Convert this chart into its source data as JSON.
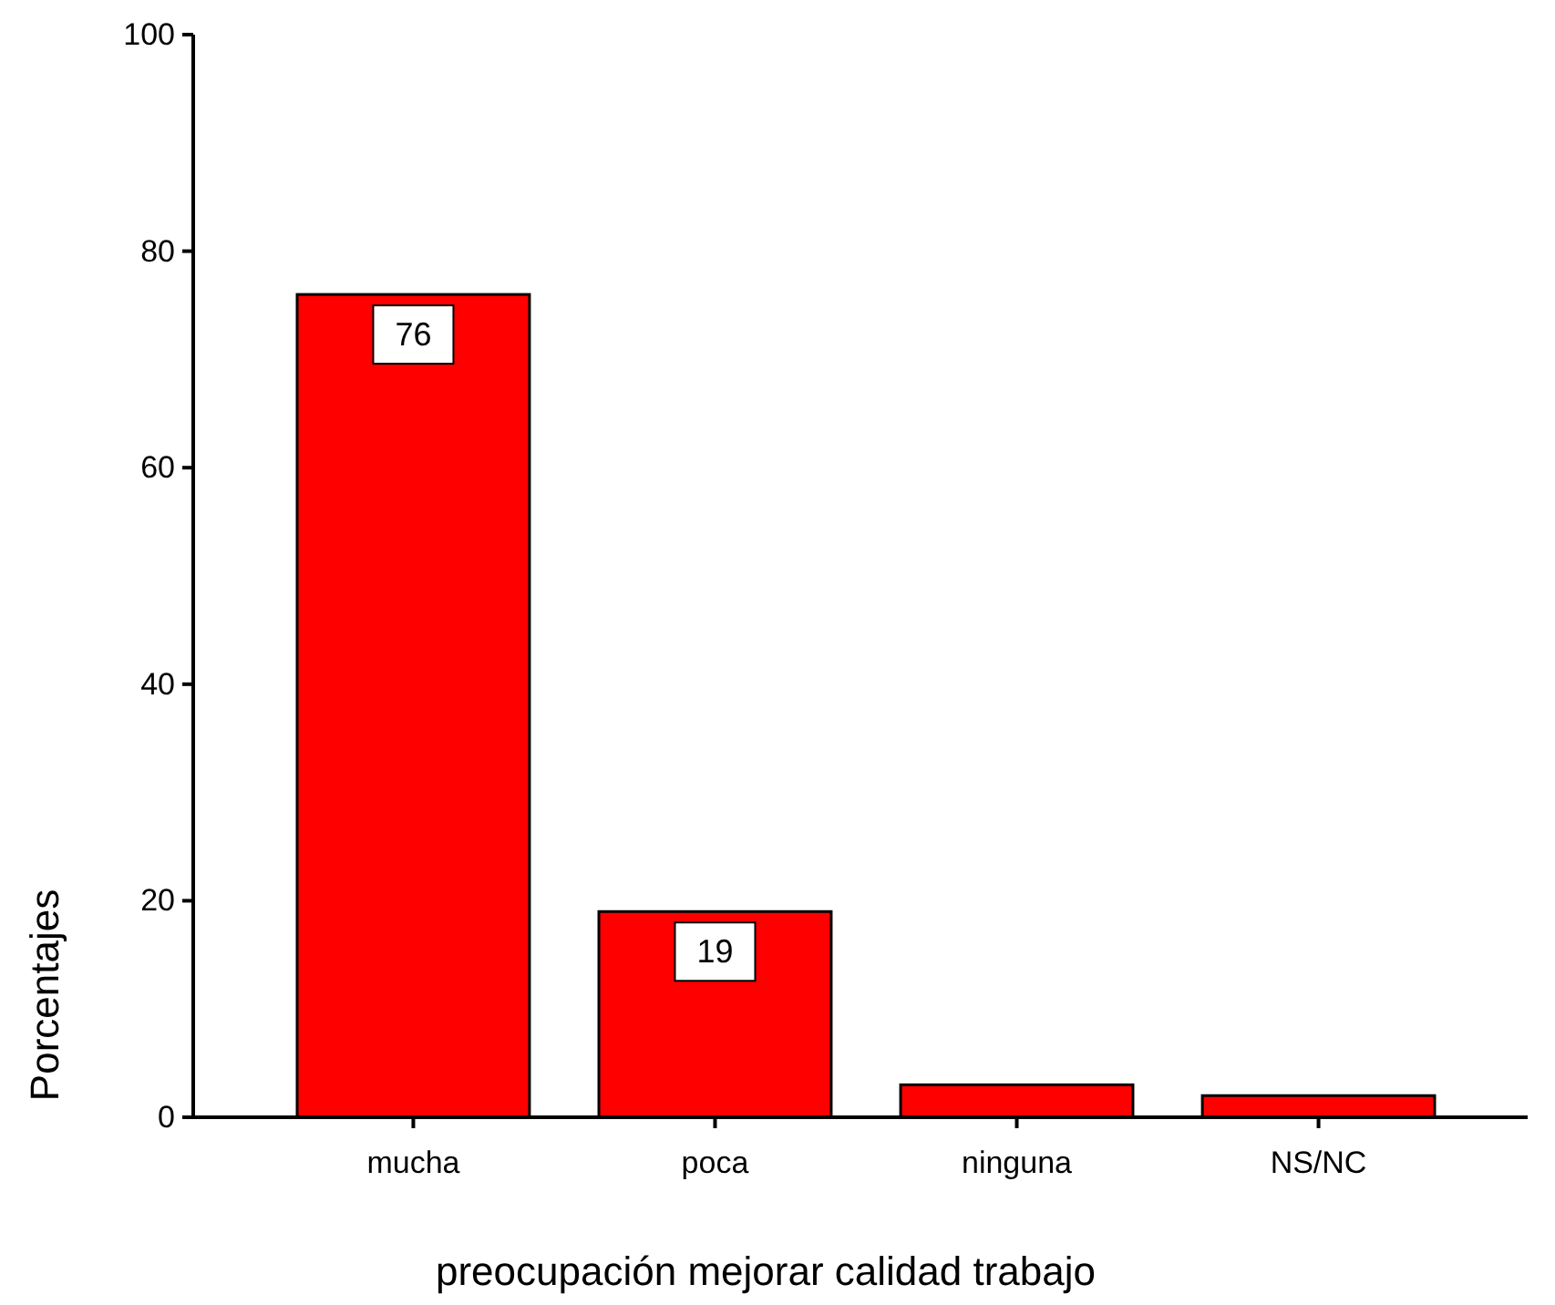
{
  "chart_data": {
    "type": "bar",
    "xlabel": "preocupación mejorar calidad trabajo",
    "ylabel": "Porcentajes",
    "categories": [
      "mucha",
      "poca",
      "ninguna",
      "NS/NC"
    ],
    "values": [
      76,
      19,
      3,
      2
    ],
    "value_labels": [
      "76",
      "19",
      null,
      null
    ],
    "color": "#ff0000",
    "ylim": [
      0,
      100
    ],
    "yticks": [
      0,
      20,
      40,
      60,
      80,
      100
    ],
    "grid": false
  }
}
